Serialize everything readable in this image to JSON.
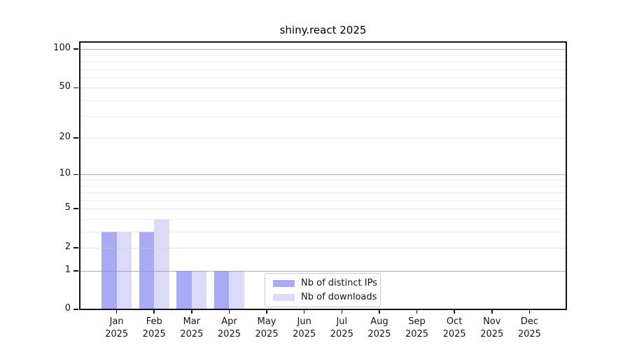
{
  "chart_data": {
    "type": "bar",
    "title": "shiny.react 2025",
    "categories": [
      "Jan",
      "Feb",
      "Mar",
      "Apr",
      "May",
      "Jun",
      "Jul",
      "Aug",
      "Sep",
      "Oct",
      "Nov",
      "Dec"
    ],
    "x_year_label": "2025",
    "series": [
      {
        "name": "Nb of distinct IPs",
        "color": "#aaa9f6",
        "values": [
          3,
          3,
          1,
          1,
          0,
          0,
          0,
          0,
          0,
          0,
          0,
          0
        ]
      },
      {
        "name": "Nb of downloads",
        "color": "#dbdaf8",
        "values": [
          3,
          4,
          1,
          1,
          0,
          0,
          0,
          0,
          0,
          0,
          0,
          0
        ]
      }
    ],
    "y_scale": "log1p",
    "y_ticks": [
      0,
      1,
      2,
      5,
      10,
      20,
      50,
      100
    ],
    "y_decade_gridlines": [
      1,
      10,
      100
    ],
    "y_mid_gridlines": [
      2,
      5,
      20,
      50
    ],
    "y_minor_gridlines": [
      3,
      4,
      6,
      7,
      8,
      9,
      30,
      40,
      60,
      70,
      80,
      90
    ],
    "ylim": [
      0,
      115
    ],
    "grid": true,
    "legend_position": "lower center"
  }
}
